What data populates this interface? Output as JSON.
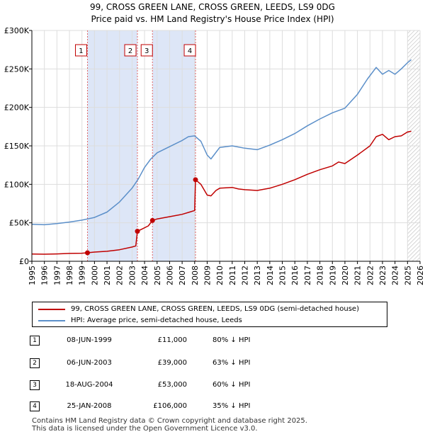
{
  "header": {
    "line1": "99, CROSS GREEN LANE, CROSS GREEN, LEEDS, LS9 0DG",
    "line2": "Price paid vs. HM Land Registry's House Price Index (HPI)"
  },
  "colors": {
    "property": "#c00000",
    "hpi": "#5b8fc9",
    "shade": "#dde6f7",
    "hatch": "#bbbbbb",
    "grid": "#dddddd",
    "sale_line": "#e06666"
  },
  "chart_data": {
    "type": "line",
    "title": "99, CROSS GREEN LANE, CROSS GREEN, LEEDS, LS9 0DG — Price paid vs. HM Land Registry's House Price Index (HPI)",
    "xlim": [
      1995,
      2026
    ],
    "ylim": [
      0,
      300000
    ],
    "grid": true,
    "yticks": [
      0,
      50000,
      100000,
      150000,
      200000,
      250000,
      300000
    ],
    "ytick_labels": [
      "£0",
      "£50K",
      "£100K",
      "£150K",
      "£200K",
      "£250K",
      "£300K"
    ],
    "xticks": [
      "1995",
      "1996",
      "1997",
      "1998",
      "1999",
      "2000",
      "2001",
      "2002",
      "2003",
      "2004",
      "2005",
      "2006",
      "2007",
      "2008",
      "2009",
      "2010",
      "2011",
      "2012",
      "2013",
      "2014",
      "2015",
      "2016",
      "2017",
      "2018",
      "2019",
      "2020",
      "2021",
      "2022",
      "2023",
      "2024",
      "2025",
      "2026"
    ],
    "shaded_periods": [
      [
        1999.44,
        2003.43
      ],
      [
        2004.63,
        2008.07
      ]
    ],
    "hatched_from": 2025.0,
    "series": [
      {
        "name": "99, CROSS GREEN LANE, CROSS GREEN, LEEDS, LS9 0DG (semi-detached house)",
        "x": [
          1995.0,
          1996.0,
          1997.0,
          1998.0,
          1999.0,
          1999.44,
          2000.0,
          2001.0,
          2002.0,
          2003.0,
          2003.3,
          2003.43,
          2003.8,
          2004.3,
          2004.63,
          2005.0,
          2006.0,
          2007.0,
          2007.6,
          2008.0,
          2008.07,
          2008.5,
          2009.0,
          2009.3,
          2009.7,
          2010.0,
          2011.0,
          2011.5,
          2012.0,
          2013.0,
          2014.0,
          2015.0,
          2016.0,
          2017.0,
          2018.0,
          2019.0,
          2019.5,
          2020.0,
          2021.0,
          2022.0,
          2022.5,
          2023.0,
          2023.5,
          2024.0,
          2024.5,
          2025.0,
          2025.3
        ],
        "values": [
          9500,
          9200,
          9600,
          10200,
          10500,
          11000,
          12000,
          13000,
          15000,
          18500,
          20000,
          39000,
          42000,
          46000,
          53000,
          55000,
          58000,
          61000,
          64000,
          66000,
          106000,
          100000,
          86000,
          85000,
          92000,
          95000,
          96000,
          94000,
          93000,
          92000,
          95000,
          100000,
          106000,
          113000,
          119000,
          124000,
          129000,
          127000,
          138000,
          150000,
          162000,
          165000,
          158000,
          162000,
          163000,
          168000,
          169000
        ]
      },
      {
        "name": "HPI: Average price, semi-detached house, Leeds",
        "x": [
          1995.0,
          1996.0,
          1997.0,
          1998.0,
          1999.0,
          2000.0,
          2001.0,
          2002.0,
          2003.0,
          2003.5,
          2004.0,
          2004.5,
          2005.0,
          2006.0,
          2007.0,
          2007.5,
          2008.0,
          2008.5,
          2009.0,
          2009.3,
          2010.0,
          2011.0,
          2012.0,
          2013.0,
          2014.0,
          2015.0,
          2016.0,
          2017.0,
          2018.0,
          2019.0,
          2020.0,
          2021.0,
          2021.8,
          2022.5,
          2023.0,
          2023.5,
          2024.0,
          2024.5,
          2025.0,
          2025.3
        ],
        "values": [
          48000,
          47500,
          49000,
          51000,
          53500,
          57000,
          64000,
          77000,
          95000,
          107000,
          122000,
          133000,
          141000,
          149000,
          157000,
          162000,
          163000,
          156000,
          138000,
          133000,
          148000,
          150000,
          147000,
          145000,
          151000,
          158000,
          166000,
          176000,
          185000,
          193000,
          199000,
          217000,
          237000,
          252000,
          243000,
          248000,
          243000,
          250000,
          258000,
          262000
        ]
      }
    ],
    "sales": [
      {
        "id": "1",
        "x": 1999.44,
        "price": 11000
      },
      {
        "id": "2",
        "x": 2003.43,
        "price": 39000
      },
      {
        "id": "3",
        "x": 2004.63,
        "price": 53000
      },
      {
        "id": "4",
        "x": 2008.07,
        "price": 106000
      }
    ]
  },
  "legend": {
    "property_label": "99, CROSS GREEN LANE, CROSS GREEN, LEEDS, LS9 0DG (semi-detached house)",
    "hpi_label": "HPI: Average price, semi-detached house, Leeds"
  },
  "sales_table": [
    {
      "num": "1",
      "date": "08-JUN-1999",
      "price": "£11,000",
      "hpi": "80% ↓ HPI"
    },
    {
      "num": "2",
      "date": "06-JUN-2003",
      "price": "£39,000",
      "hpi": "63% ↓ HPI"
    },
    {
      "num": "3",
      "date": "18-AUG-2004",
      "price": "£53,000",
      "hpi": "60% ↓ HPI"
    },
    {
      "num": "4",
      "date": "25-JAN-2008",
      "price": "£106,000",
      "hpi": "35% ↓ HPI"
    }
  ],
  "footer": {
    "line1": "Contains HM Land Registry data © Crown copyright and database right 2025.",
    "line2": "This data is licensed under the Open Government Licence v3.0."
  }
}
